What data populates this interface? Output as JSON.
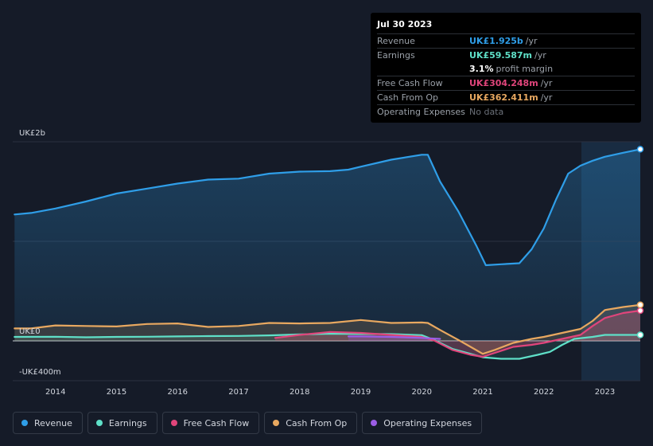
{
  "tooltip": {
    "date": "Jul 30 2023",
    "rows": [
      {
        "label": "Revenue",
        "value": "UK£1.925b",
        "unit": "/yr",
        "color": "#2f9ee8"
      },
      {
        "label": "Earnings",
        "value": "UK£59.587m",
        "unit": "/yr",
        "color": "#5fe0c8"
      },
      {
        "label": "",
        "value": "3.1%",
        "unit": "profit margin",
        "color": "#ffffff"
      },
      {
        "label": "Free Cash Flow",
        "value": "UK£304.248m",
        "unit": "/yr",
        "color": "#e0457b"
      },
      {
        "label": "Cash From Op",
        "value": "UK£362.411m",
        "unit": "/yr",
        "color": "#e8a860"
      },
      {
        "label": "Operating Expenses",
        "value": "No data",
        "unit": "",
        "color": "#6b7079"
      }
    ]
  },
  "legend": [
    {
      "label": "Revenue",
      "color": "#2f9ee8"
    },
    {
      "label": "Earnings",
      "color": "#5fe0c8"
    },
    {
      "label": "Free Cash Flow",
      "color": "#e0457b"
    },
    {
      "label": "Cash From Op",
      "color": "#e8a860"
    },
    {
      "label": "Operating Expenses",
      "color": "#9b5de5"
    }
  ],
  "chart_data": {
    "type": "area",
    "y_unit": "UK£m",
    "ylim": [
      -400,
      2000
    ],
    "y_tick_labels": [
      {
        "value": 2000,
        "label": "UK£2b"
      },
      {
        "value": 0,
        "label": "UK£0"
      },
      {
        "value": -400,
        "label": "-UK£400m"
      }
    ],
    "xlim": [
      2013.3,
      2023.58
    ],
    "x_ticks": [
      2014,
      2015,
      2016,
      2017,
      2018,
      2019,
      2020,
      2021,
      2022,
      2023
    ],
    "forecast_start": 2022.58,
    "series": [
      {
        "name": "Revenue",
        "color": "#2f9ee8",
        "points": [
          [
            2013.33,
            1270
          ],
          [
            2013.6,
            1285
          ],
          [
            2014.0,
            1330
          ],
          [
            2014.5,
            1400
          ],
          [
            2015.0,
            1480
          ],
          [
            2015.5,
            1530
          ],
          [
            2016.0,
            1580
          ],
          [
            2016.5,
            1620
          ],
          [
            2017.0,
            1630
          ],
          [
            2017.5,
            1680
          ],
          [
            2018.0,
            1700
          ],
          [
            2018.5,
            1705
          ],
          [
            2018.8,
            1720
          ],
          [
            2019.0,
            1750
          ],
          [
            2019.5,
            1820
          ],
          [
            2020.0,
            1870
          ],
          [
            2020.1,
            1870
          ],
          [
            2020.3,
            1600
          ],
          [
            2020.6,
            1300
          ],
          [
            2020.9,
            950
          ],
          [
            2021.05,
            760
          ],
          [
            2021.3,
            770
          ],
          [
            2021.6,
            780
          ],
          [
            2021.8,
            920
          ],
          [
            2022.0,
            1130
          ],
          [
            2022.2,
            1420
          ],
          [
            2022.4,
            1680
          ],
          [
            2022.6,
            1760
          ],
          [
            2022.8,
            1810
          ],
          [
            2023.0,
            1850
          ],
          [
            2023.3,
            1890
          ],
          [
            2023.58,
            1925
          ]
        ]
      },
      {
        "name": "Earnings",
        "color": "#5fe0c8",
        "points": [
          [
            2013.33,
            40
          ],
          [
            2014.0,
            42
          ],
          [
            2014.5,
            36
          ],
          [
            2015.0,
            40
          ],
          [
            2015.5,
            42
          ],
          [
            2016.0,
            45
          ],
          [
            2016.5,
            48
          ],
          [
            2017.0,
            50
          ],
          [
            2017.5,
            55
          ],
          [
            2018.0,
            65
          ],
          [
            2018.5,
            72
          ],
          [
            2019.0,
            70
          ],
          [
            2019.5,
            68
          ],
          [
            2020.0,
            58
          ],
          [
            2020.2,
            10
          ],
          [
            2020.5,
            -80
          ],
          [
            2020.8,
            -130
          ],
          [
            2021.0,
            -165
          ],
          [
            2021.3,
            -180
          ],
          [
            2021.6,
            -180
          ],
          [
            2021.9,
            -140
          ],
          [
            2022.1,
            -110
          ],
          [
            2022.3,
            -40
          ],
          [
            2022.5,
            20
          ],
          [
            2022.8,
            40
          ],
          [
            2023.0,
            60
          ],
          [
            2023.3,
            60
          ],
          [
            2023.58,
            60
          ]
        ]
      },
      {
        "name": "Free Cash Flow",
        "color": "#e0457b",
        "points": [
          [
            2017.6,
            30
          ],
          [
            2018.0,
            60
          ],
          [
            2018.5,
            90
          ],
          [
            2019.0,
            80
          ],
          [
            2019.5,
            60
          ],
          [
            2020.0,
            40
          ],
          [
            2020.2,
            5
          ],
          [
            2020.5,
            -90
          ],
          [
            2020.8,
            -140
          ],
          [
            2021.0,
            -160
          ],
          [
            2021.2,
            -120
          ],
          [
            2021.5,
            -60
          ],
          [
            2021.8,
            -40
          ],
          [
            2022.0,
            -20
          ],
          [
            2022.3,
            20
          ],
          [
            2022.6,
            60
          ],
          [
            2022.8,
            150
          ],
          [
            2023.0,
            230
          ],
          [
            2023.3,
            280
          ],
          [
            2023.58,
            304
          ]
        ]
      },
      {
        "name": "Cash From Op",
        "color": "#e8a860",
        "points": [
          [
            2013.33,
            125
          ],
          [
            2013.6,
            125
          ],
          [
            2014.0,
            155
          ],
          [
            2014.5,
            150
          ],
          [
            2015.0,
            145
          ],
          [
            2015.5,
            170
          ],
          [
            2016.0,
            175
          ],
          [
            2016.5,
            140
          ],
          [
            2017.0,
            150
          ],
          [
            2017.5,
            180
          ],
          [
            2018.0,
            175
          ],
          [
            2018.5,
            180
          ],
          [
            2019.0,
            210
          ],
          [
            2019.5,
            180
          ],
          [
            2020.0,
            185
          ],
          [
            2020.1,
            180
          ],
          [
            2020.3,
            110
          ],
          [
            2020.6,
            10
          ],
          [
            2020.8,
            -60
          ],
          [
            2021.0,
            -130
          ],
          [
            2021.2,
            -90
          ],
          [
            2021.5,
            -20
          ],
          [
            2021.8,
            20
          ],
          [
            2022.0,
            40
          ],
          [
            2022.3,
            80
          ],
          [
            2022.6,
            120
          ],
          [
            2022.8,
            200
          ],
          [
            2023.0,
            310
          ],
          [
            2023.3,
            340
          ],
          [
            2023.58,
            362
          ]
        ]
      },
      {
        "name": "Operating Expenses",
        "color": "#9b5de5",
        "points": [
          [
            2018.8,
            45
          ],
          [
            2019.0,
            45
          ],
          [
            2019.5,
            40
          ],
          [
            2020.0,
            30
          ],
          [
            2020.3,
            20
          ]
        ]
      }
    ]
  }
}
